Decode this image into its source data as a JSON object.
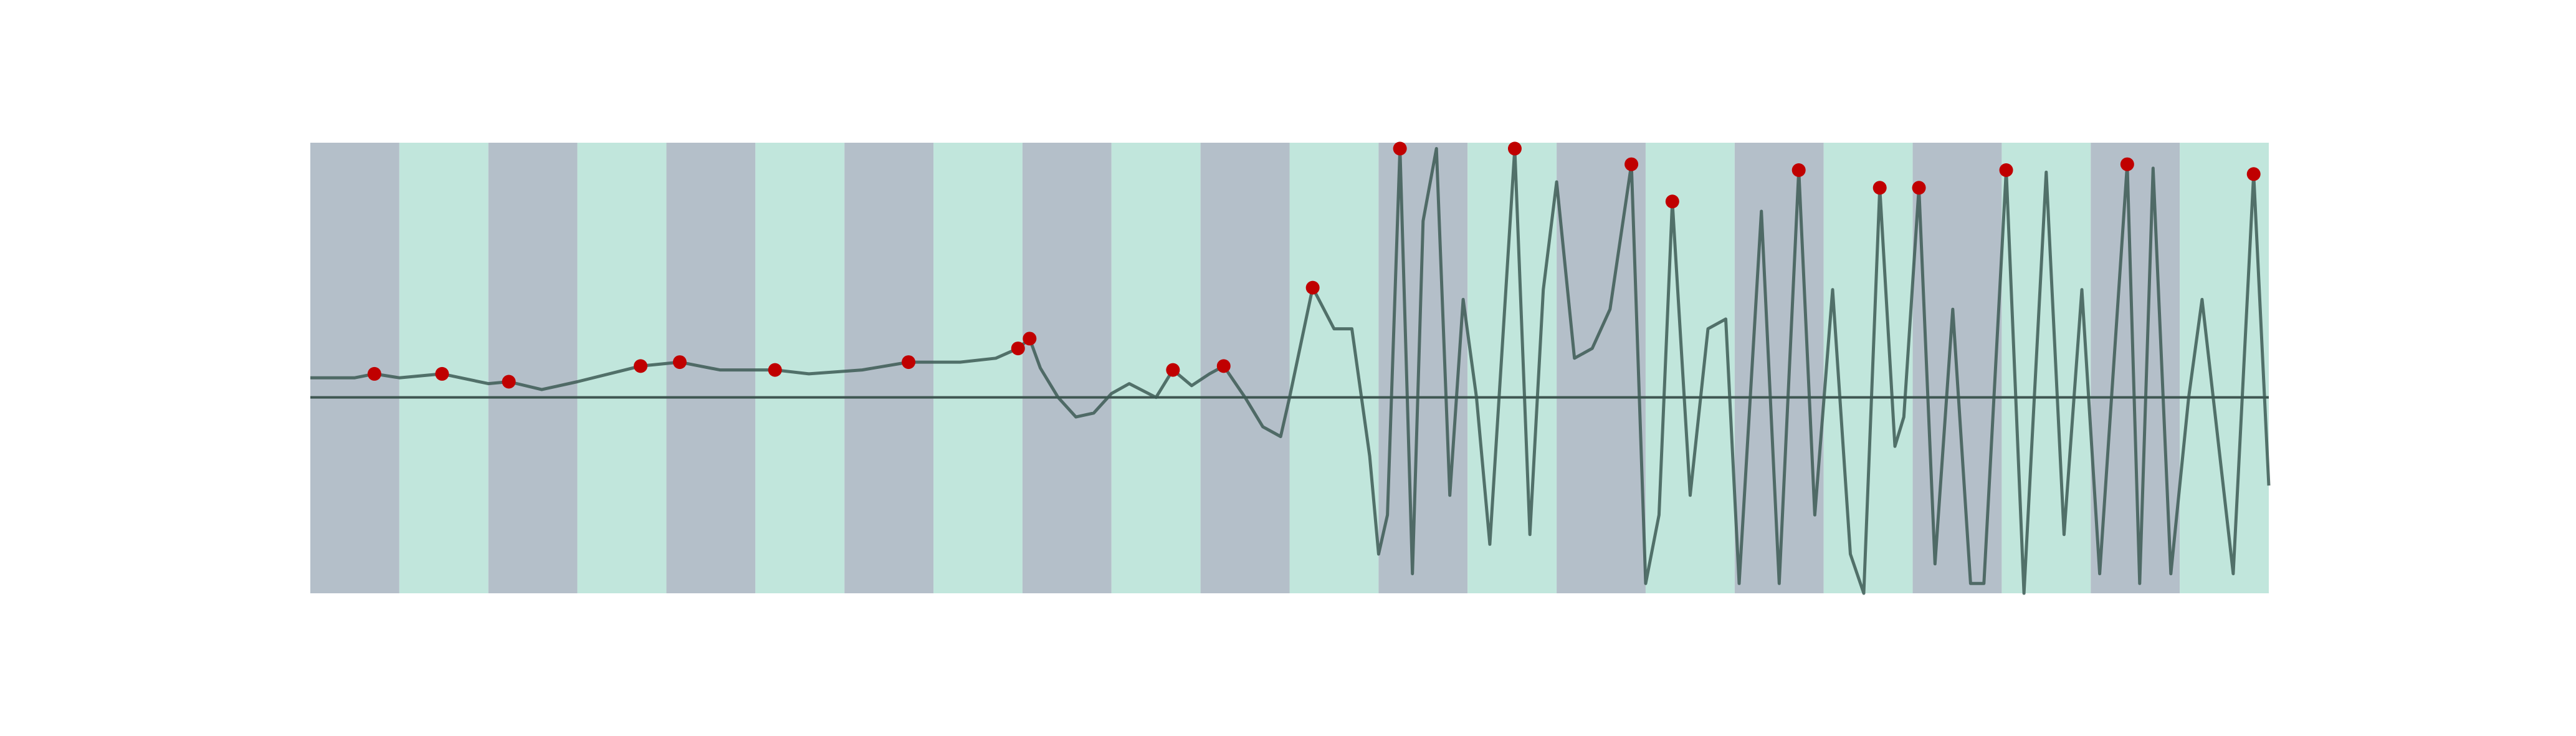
{
  "chart_data": {
    "type": "line",
    "xlim": [
      0,
      22
    ],
    "ylim": [
      -1,
      1.3
    ],
    "xticks": [
      0,
      1,
      2,
      3,
      4,
      5,
      6,
      7,
      8,
      9,
      10,
      11,
      12,
      13,
      14,
      15,
      16,
      17,
      18,
      19,
      20,
      21,
      22
    ],
    "band_colors": [
      "#b4bfc9",
      "#c1e6dc"
    ],
    "zero_line_color": "#3f5752",
    "x": [
      0,
      0.5,
      0.72,
      1,
      1.48,
      2,
      2.23,
      2.6,
      3,
      3.71,
      4.15,
      4.6,
      5.22,
      5.6,
      6.2,
      6.72,
      7.3,
      7.7,
      7.95,
      8.08,
      8.2,
      8.4,
      8.6,
      8.8,
      9.0,
      9.2,
      9.5,
      9.69,
      9.9,
      10.1,
      10.26,
      10.5,
      10.7,
      10.9,
      11.0,
      11.26,
      11.5,
      11.7,
      11.9,
      12.0,
      12.1,
      12.24,
      12.38,
      12.5,
      12.65,
      12.8,
      12.95,
      13.1,
      13.25,
      13.53,
      13.7,
      13.85,
      14.0,
      14.2,
      14.4,
      14.6,
      14.84,
      15.0,
      15.15,
      15.3,
      15.5,
      15.7,
      15.9,
      16.05,
      16.3,
      16.5,
      16.72,
      16.9,
      17.1,
      17.3,
      17.45,
      17.63,
      17.8,
      17.9,
      18.07,
      18.25,
      18.45,
      18.65,
      18.8,
      19.05,
      19.25,
      19.5,
      19.7,
      19.9,
      20.1,
      20.41,
      20.55,
      20.7,
      20.9,
      21.1,
      21.25,
      21.5,
      21.6,
      21.83,
      22.0
    ],
    "series": [
      {
        "color": "#3d5a55",
        "values": [
          0.1,
          0.1,
          0.12,
          0.1,
          0.12,
          0.07,
          0.08,
          0.04,
          0.08,
          0.16,
          0.18,
          0.14,
          0.14,
          0.12,
          0.14,
          0.18,
          0.18,
          0.2,
          0.25,
          0.3,
          0.15,
          0.0,
          -0.1,
          -0.08,
          0.02,
          0.07,
          0.0,
          0.14,
          0.06,
          0.12,
          0.16,
          0.0,
          -0.15,
          -0.2,
          0.0,
          0.56,
          0.35,
          0.35,
          -0.3,
          -0.8,
          -0.6,
          1.27,
          -0.9,
          0.9,
          1.27,
          -0.5,
          0.5,
          0.0,
          -0.75,
          1.27,
          -0.7,
          0.55,
          1.1,
          0.2,
          0.25,
          0.45,
          1.19,
          -0.95,
          -0.6,
          1.0,
          -0.5,
          0.35,
          0.4,
          -0.95,
          0.95,
          -0.95,
          1.16,
          -0.6,
          0.55,
          -0.8,
          -1.0,
          1.07,
          -0.25,
          -0.1,
          1.07,
          -0.85,
          0.45,
          -0.95,
          -0.95,
          1.16,
          -1.0,
          1.15,
          -0.7,
          0.55,
          -0.9,
          1.19,
          -0.95,
          1.17,
          -0.9,
          0.0,
          0.5,
          -0.5,
          -0.9,
          1.14,
          -0.45
        ]
      }
    ],
    "markers": {
      "color": "#c00000",
      "x": [
        0.72,
        1.48,
        2.23,
        3.71,
        4.15,
        5.22,
        6.72,
        7.95,
        8.08,
        9.69,
        10.26,
        11.26,
        12.24,
        13.53,
        14.84,
        15.3,
        16.72,
        17.63,
        18.07,
        19.05,
        20.41,
        21.83
      ],
      "y": [
        0.12,
        0.12,
        0.08,
        0.16,
        0.18,
        0.14,
        0.18,
        0.25,
        0.3,
        0.14,
        0.16,
        0.56,
        1.27,
        1.27,
        1.19,
        1.0,
        1.16,
        1.07,
        1.07,
        1.16,
        1.19,
        1.14
      ]
    }
  }
}
